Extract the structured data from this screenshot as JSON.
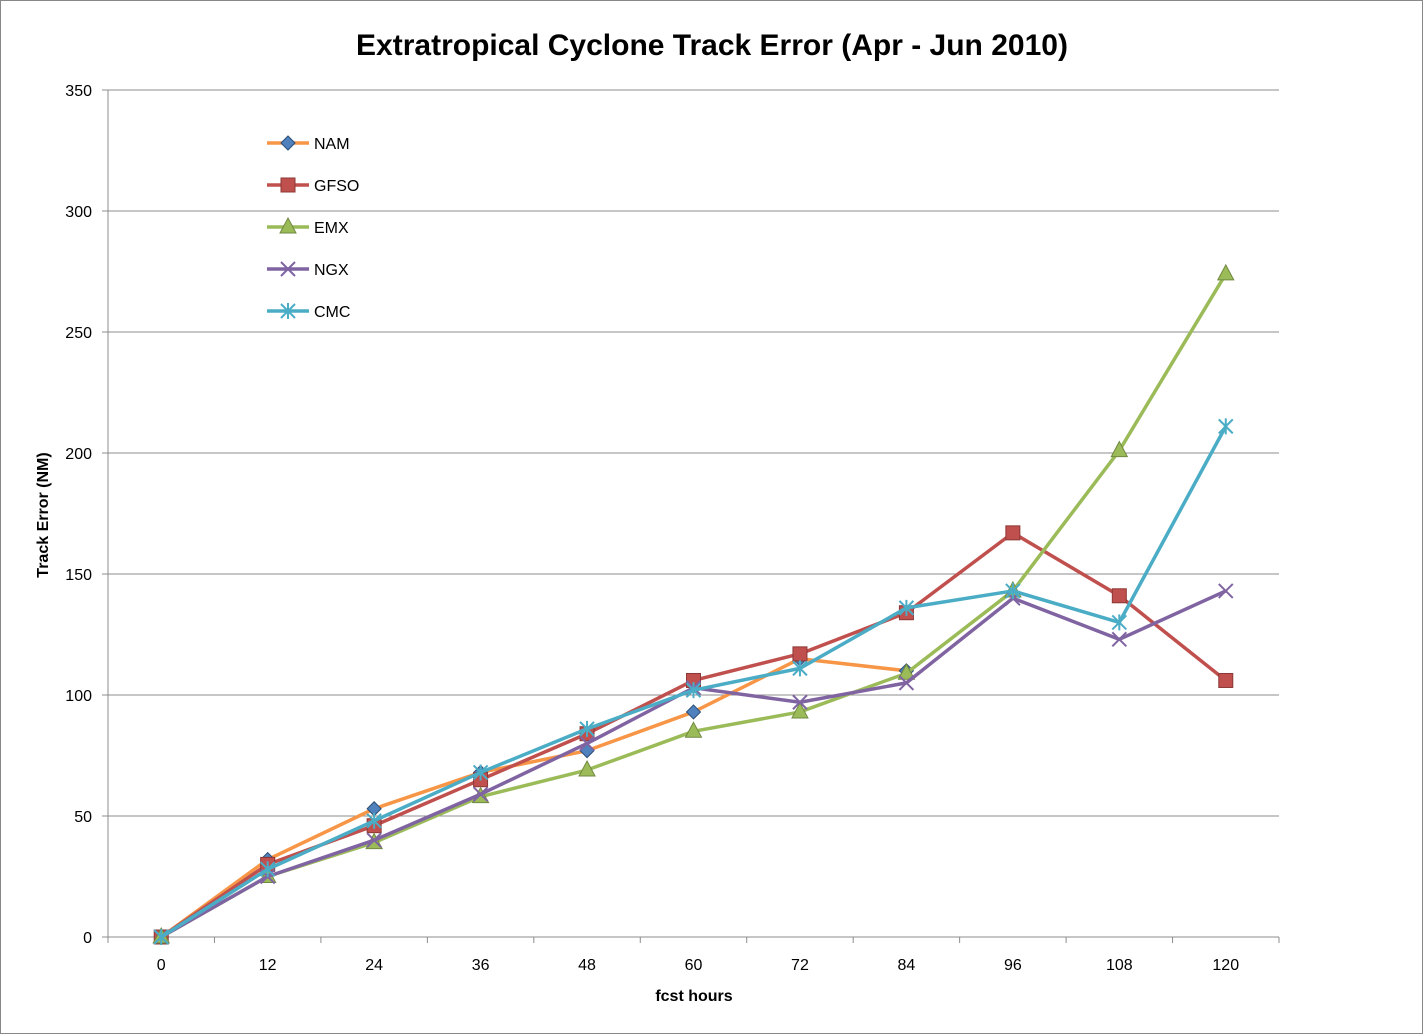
{
  "chart_data": {
    "type": "line",
    "title": "Extratropical Cyclone Track Error (Apr - Jun 2010)",
    "xlabel": "fcst hours",
    "ylabel": "Track Error  (NM)",
    "categories": [
      "0",
      "12",
      "24",
      "36",
      "48",
      "60",
      "72",
      "84",
      "96",
      "108",
      "120"
    ],
    "y_ticks": [
      "0",
      "50",
      "100",
      "150",
      "200",
      "250",
      "300",
      "350"
    ],
    "ylim": [
      0,
      350
    ],
    "grid": "horizontal",
    "legend_position": "top-left inside",
    "series": [
      {
        "name": "NAM",
        "color": "#F79646",
        "marker": "diamond",
        "marker_color": "#4F81BD",
        "values": [
          0,
          32,
          53,
          68,
          77,
          93,
          115,
          110,
          null,
          null,
          null
        ]
      },
      {
        "name": "GFSO",
        "color": "#C0504D",
        "marker": "square",
        "marker_color": "#C0504D",
        "values": [
          0,
          30,
          46,
          65,
          84,
          106,
          117,
          134,
          167,
          141,
          106
        ]
      },
      {
        "name": "EMX",
        "color": "#9BBB59",
        "marker": "triangle",
        "marker_color": "#9BBB59",
        "values": [
          0,
          25,
          39,
          58,
          69,
          85,
          93,
          109,
          143,
          201,
          274
        ]
      },
      {
        "name": "NGX",
        "color": "#8064A2",
        "marker": "x",
        "marker_color": "#8064A2",
        "values": [
          0,
          25,
          40,
          59,
          80,
          103,
          97,
          105,
          140,
          123,
          143
        ]
      },
      {
        "name": "CMC",
        "color": "#4BACC6",
        "marker": "asterisk",
        "marker_color": "#4BACC6",
        "values": [
          0,
          28,
          48,
          68,
          86,
          102,
          111,
          136,
          143,
          130,
          211
        ]
      }
    ]
  }
}
